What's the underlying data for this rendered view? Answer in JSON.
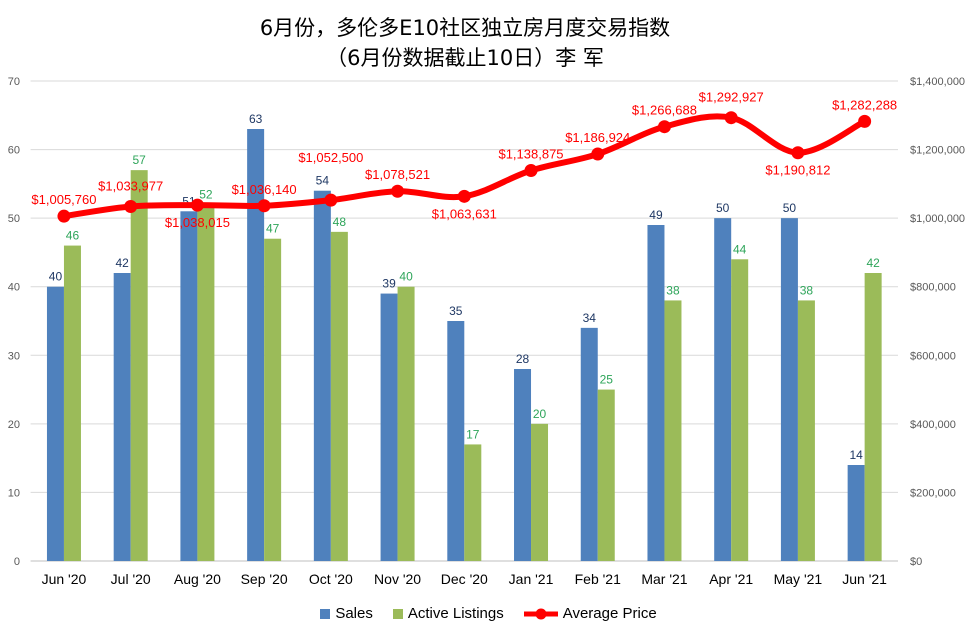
{
  "chart_data": {
    "type": "bar+line",
    "title_line1": "6月份，多伦多E10社区独立房月度交易指数",
    "title_line2": "（6月份数据截止10日）李 军",
    "categories": [
      "Jun '20",
      "Jul '20",
      "Aug '20",
      "Sep '20",
      "Oct '20",
      "Nov '20",
      "Dec '20",
      "Jan '21",
      "Feb '21",
      "Mar '21",
      "Apr '21",
      "May '21",
      "Jun '21"
    ],
    "series": [
      {
        "name": "Sales",
        "type": "bar",
        "axis": "left",
        "color": "#4f81bd",
        "label_color": "#1f3864",
        "values": [
          40,
          42,
          51,
          63,
          54,
          39,
          35,
          28,
          34,
          49,
          50,
          50,
          14
        ]
      },
      {
        "name": "Active Listings",
        "type": "bar",
        "axis": "left",
        "color": "#9bbb59",
        "label_color": "#2ea55a",
        "values": [
          46,
          57,
          52,
          47,
          48,
          40,
          17,
          20,
          25,
          38,
          44,
          38,
          42
        ]
      },
      {
        "name": "Average Price",
        "type": "line",
        "axis": "right",
        "color": "#ff0000",
        "label_color": "#ff0000",
        "values": [
          1005760,
          1033977,
          1038015,
          1036140,
          1052500,
          1078521,
          1063631,
          1138875,
          1186924,
          1266688,
          1292927,
          1190812,
          1282288
        ],
        "labels": [
          "$1,005,760",
          "$1,033,977",
          "$1,038,015",
          "$1,036,140",
          "$1,052,500",
          "$1,078,521",
          "$1,063,631",
          "$1,138,875",
          "$1,186,924",
          "$1,266,688",
          "$1,292,927",
          "$1,190,812",
          "$1,282,288"
        ],
        "label_below": [
          false,
          false,
          true,
          false,
          false,
          false,
          true,
          false,
          false,
          false,
          false,
          true,
          false
        ]
      }
    ],
    "left_axis": {
      "ylim": [
        0,
        70
      ],
      "ticks": [
        "0",
        "10",
        "20",
        "30",
        "40",
        "50",
        "60",
        "70"
      ]
    },
    "right_axis": {
      "ylim": [
        0,
        1400000
      ],
      "ticks": [
        "$0",
        "$200,000",
        "$400,000",
        "$600,000",
        "$800,000",
        "$1,000,000",
        "$1,200,000",
        "$1,400,000"
      ]
    },
    "grid": true,
    "legend_position": "bottom"
  }
}
